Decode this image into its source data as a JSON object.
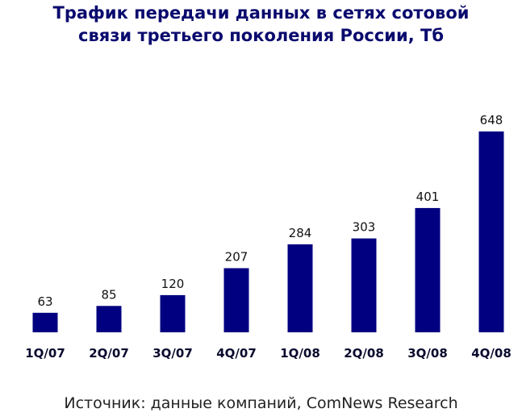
{
  "chart_data": {
    "type": "bar",
    "title_lines": [
      "Трафик передачи данных в сетях сотовой",
      "связи третьего поколения России, Тб"
    ],
    "categories": [
      "1Q/07",
      "2Q/07",
      "3Q/07",
      "4Q/07",
      "1Q/08",
      "2Q/08",
      "3Q/08",
      "4Q/08"
    ],
    "values": [
      63,
      85,
      120,
      207,
      284,
      303,
      401,
      648
    ],
    "xlabel": "",
    "ylabel": "",
    "ylim": [
      0,
      648
    ],
    "grid": false,
    "legend": "none",
    "bar_color": "#000080"
  },
  "source_text": "Источник: данные компаний, ComNews Research"
}
